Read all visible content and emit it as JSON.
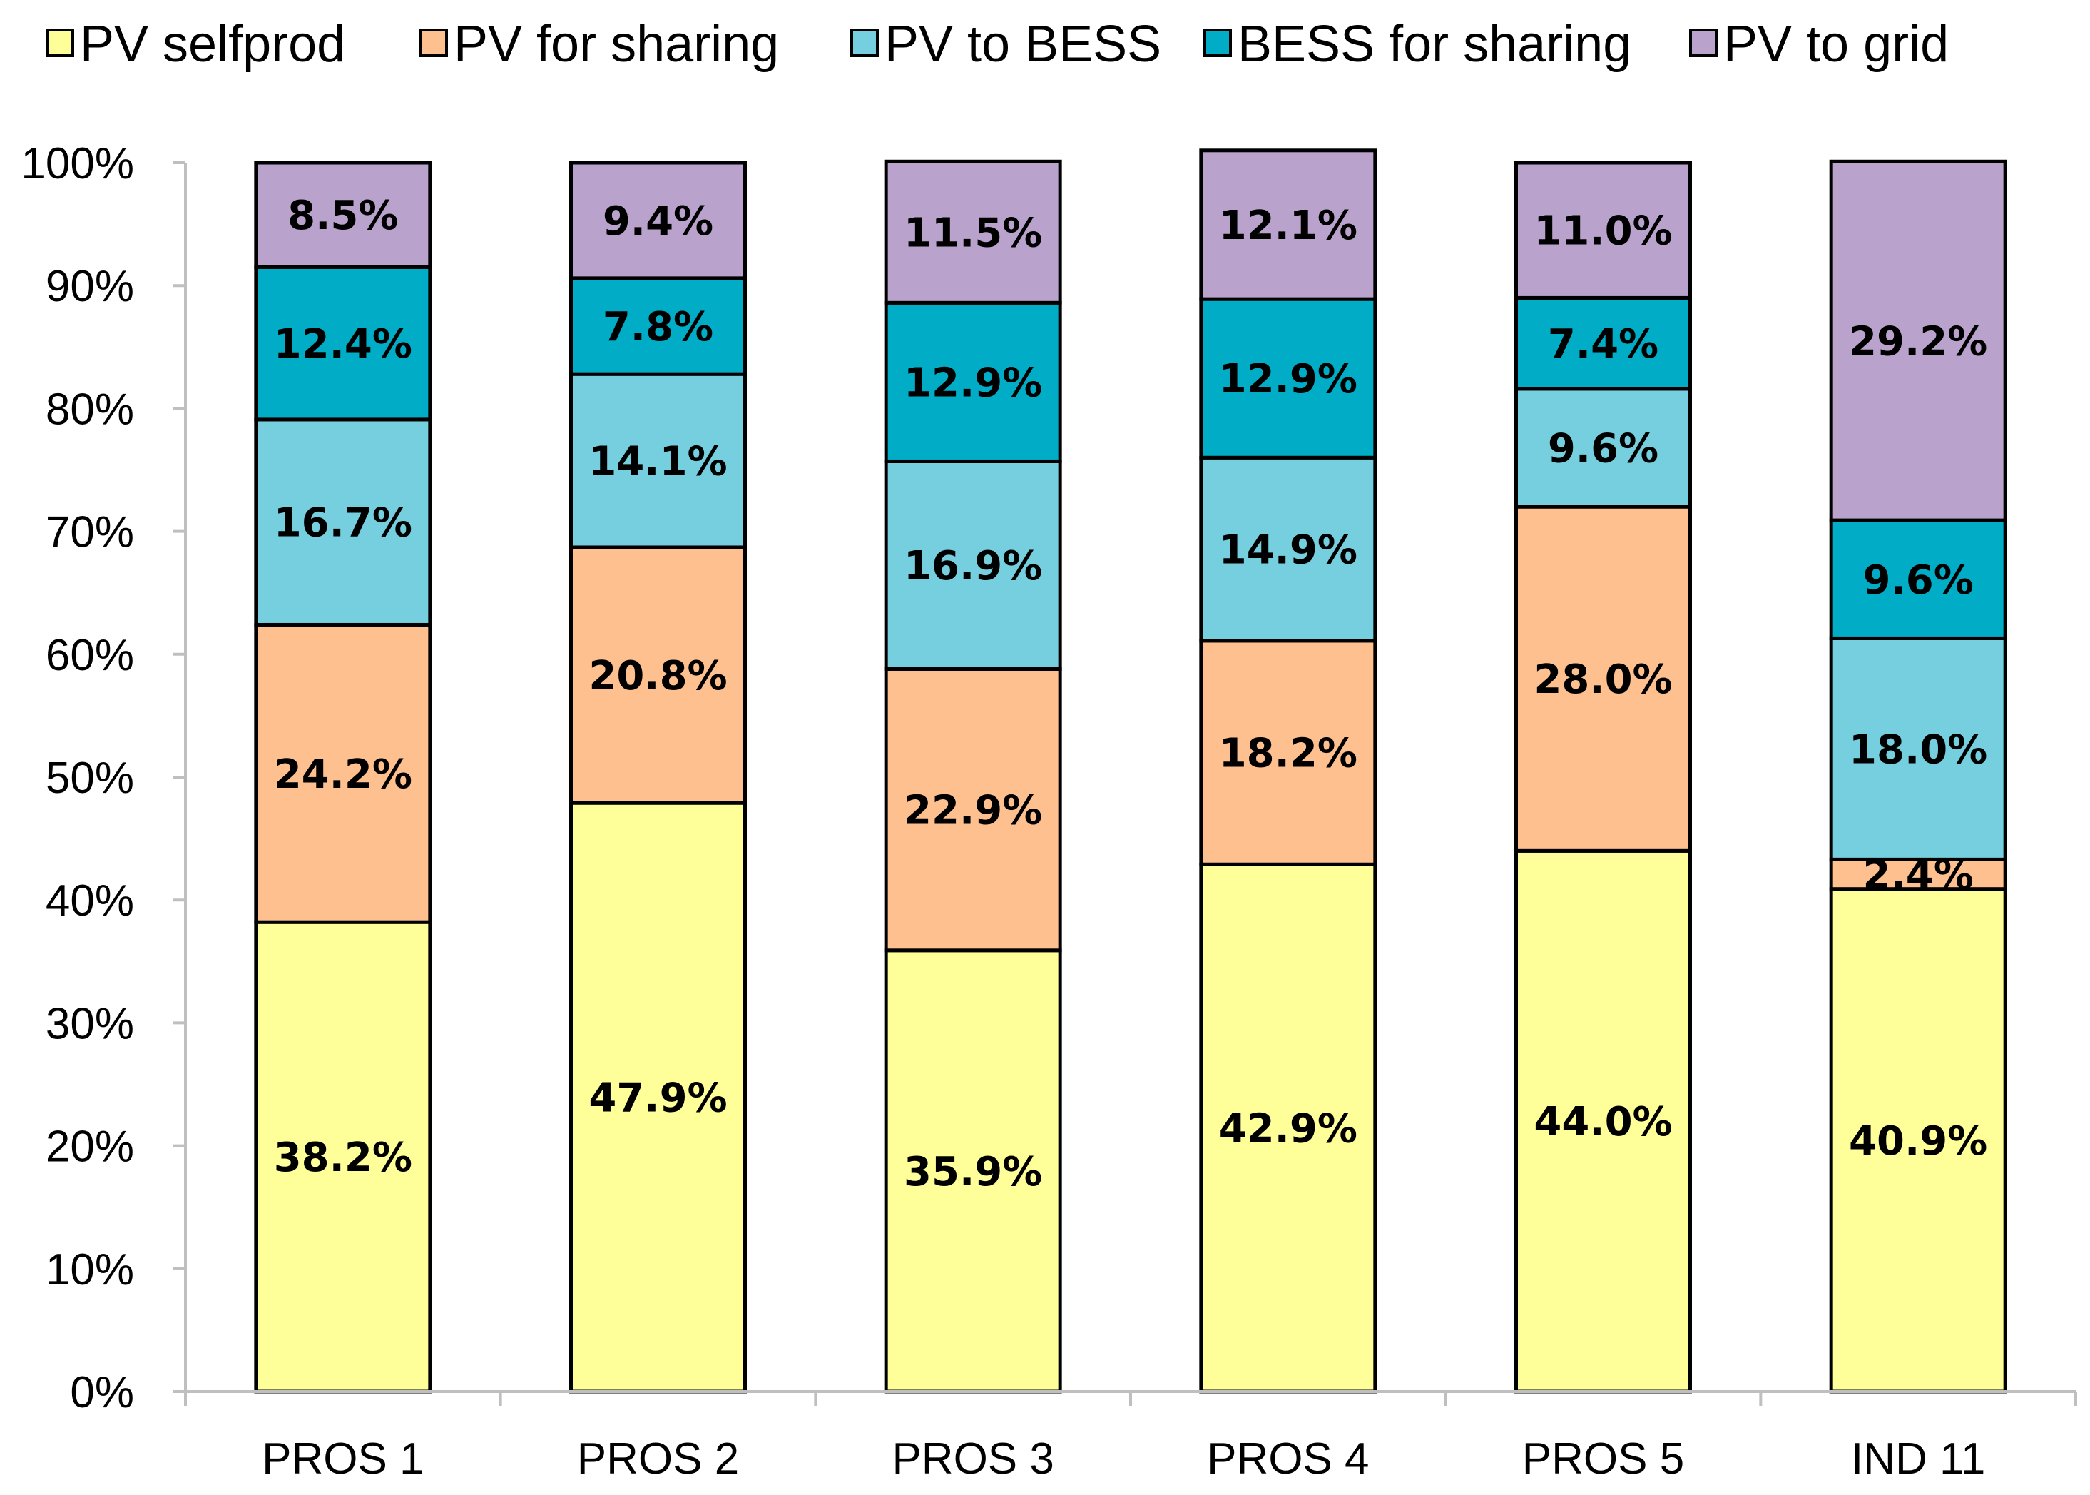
{
  "chart_data": {
    "type": "bar",
    "stacked": true,
    "categories": [
      "PROS 1",
      "PROS 2",
      "PROS 3",
      "PROS 4",
      "PROS 5",
      "IND 11"
    ],
    "series": [
      {
        "name": "PV selfprod",
        "color": "#FFFF99",
        "values": [
          38.2,
          47.9,
          35.9,
          42.9,
          44.0,
          40.9
        ],
        "labels": [
          "38.2%",
          "47.9%",
          "35.9%",
          "42.9%",
          "44.0%",
          "40.9%"
        ]
      },
      {
        "name": "PV for sharing",
        "color": "#FFC08F",
        "values": [
          24.2,
          20.8,
          22.9,
          18.2,
          28.0,
          2.4
        ],
        "labels": [
          "24.2%",
          "20.8%",
          "22.9%",
          "18.2%",
          "28.0%",
          "2.4%"
        ]
      },
      {
        "name": "PV to BESS",
        "color": "#75CFDF",
        "values": [
          16.7,
          14.1,
          16.9,
          14.9,
          9.6,
          18.0
        ],
        "labels": [
          "16.7%",
          "14.1%",
          "16.9%",
          "14.9%",
          "9.6%",
          "18.0%"
        ]
      },
      {
        "name": "BESS for sharing",
        "color": "#00ACC6",
        "values": [
          12.4,
          7.8,
          12.9,
          12.9,
          7.4,
          9.6
        ],
        "labels": [
          "12.4%",
          "7.8%",
          "12.9%",
          "12.9%",
          "7.4%",
          "9.6%"
        ]
      },
      {
        "name": "PV to grid",
        "color": "#B9A3CD",
        "values": [
          8.5,
          9.4,
          11.5,
          12.1,
          11.0,
          29.2
        ],
        "labels": [
          "8.5%",
          "9.4%",
          "11.5%",
          "12.1%",
          "11.0%",
          "29.2%"
        ]
      }
    ],
    "ylim": [
      0,
      100
    ],
    "yticks": [
      "0%",
      "10%",
      "20%",
      "30%",
      "40%",
      "50%",
      "60%",
      "70%",
      "80%",
      "90%",
      "100%"
    ],
    "title": "",
    "xlabel": "",
    "ylabel": "",
    "legend_position": "top",
    "grid": false
  }
}
